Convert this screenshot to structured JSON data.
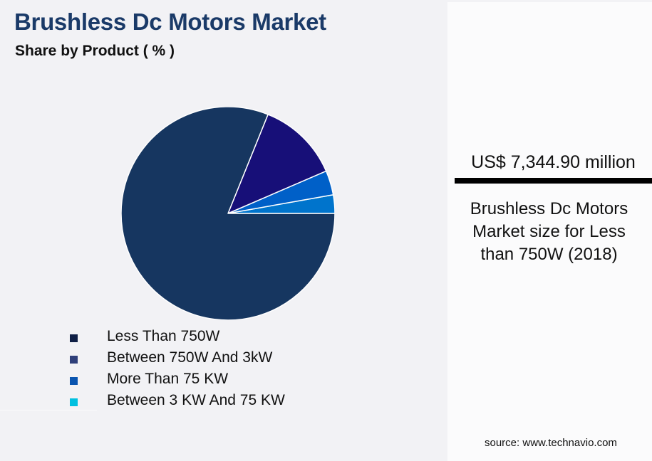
{
  "header": {
    "title": "Brushless Dc Motors Market",
    "subtitle": "Share by Product ( % )"
  },
  "chart_data": {
    "type": "pie",
    "title": "Brushless Dc Motors Market",
    "subtitle": "Share by Product ( % )",
    "categories": [
      "Less Than 750W",
      "Between 750W And 3kW",
      "More Than 75 KW",
      "Between 3 KW And 75 KW"
    ],
    "values": [
      81.1,
      12.4,
      3.7,
      2.8
    ],
    "slice_colors": [
      "#163660",
      "#170f78",
      "#0060c8",
      "#0074cc"
    ],
    "legend_colors": [
      "#0f1f45",
      "#2f3f7a",
      "#0a55b0",
      "#00c0e0"
    ],
    "start_angle_deg": 0,
    "direction": "counterclockwise",
    "legend_position": "bottom-left"
  },
  "legend": {
    "items": [
      {
        "label": "Less Than 750W",
        "color": "#0f1f45"
      },
      {
        "label": "Between 750W And 3kW",
        "color": "#2f3f7a"
      },
      {
        "label": "More Than 75 KW",
        "color": "#0a55b0"
      },
      {
        "label": "Between 3 KW And 75 KW",
        "color": "#00c0e0"
      }
    ]
  },
  "panel": {
    "kpi_value": "US$ 7,344.90 million",
    "kpi_caption": "Brushless Dc Motors Market size for Less than 750W (2018)",
    "source": "source: www.technavio.com"
  }
}
